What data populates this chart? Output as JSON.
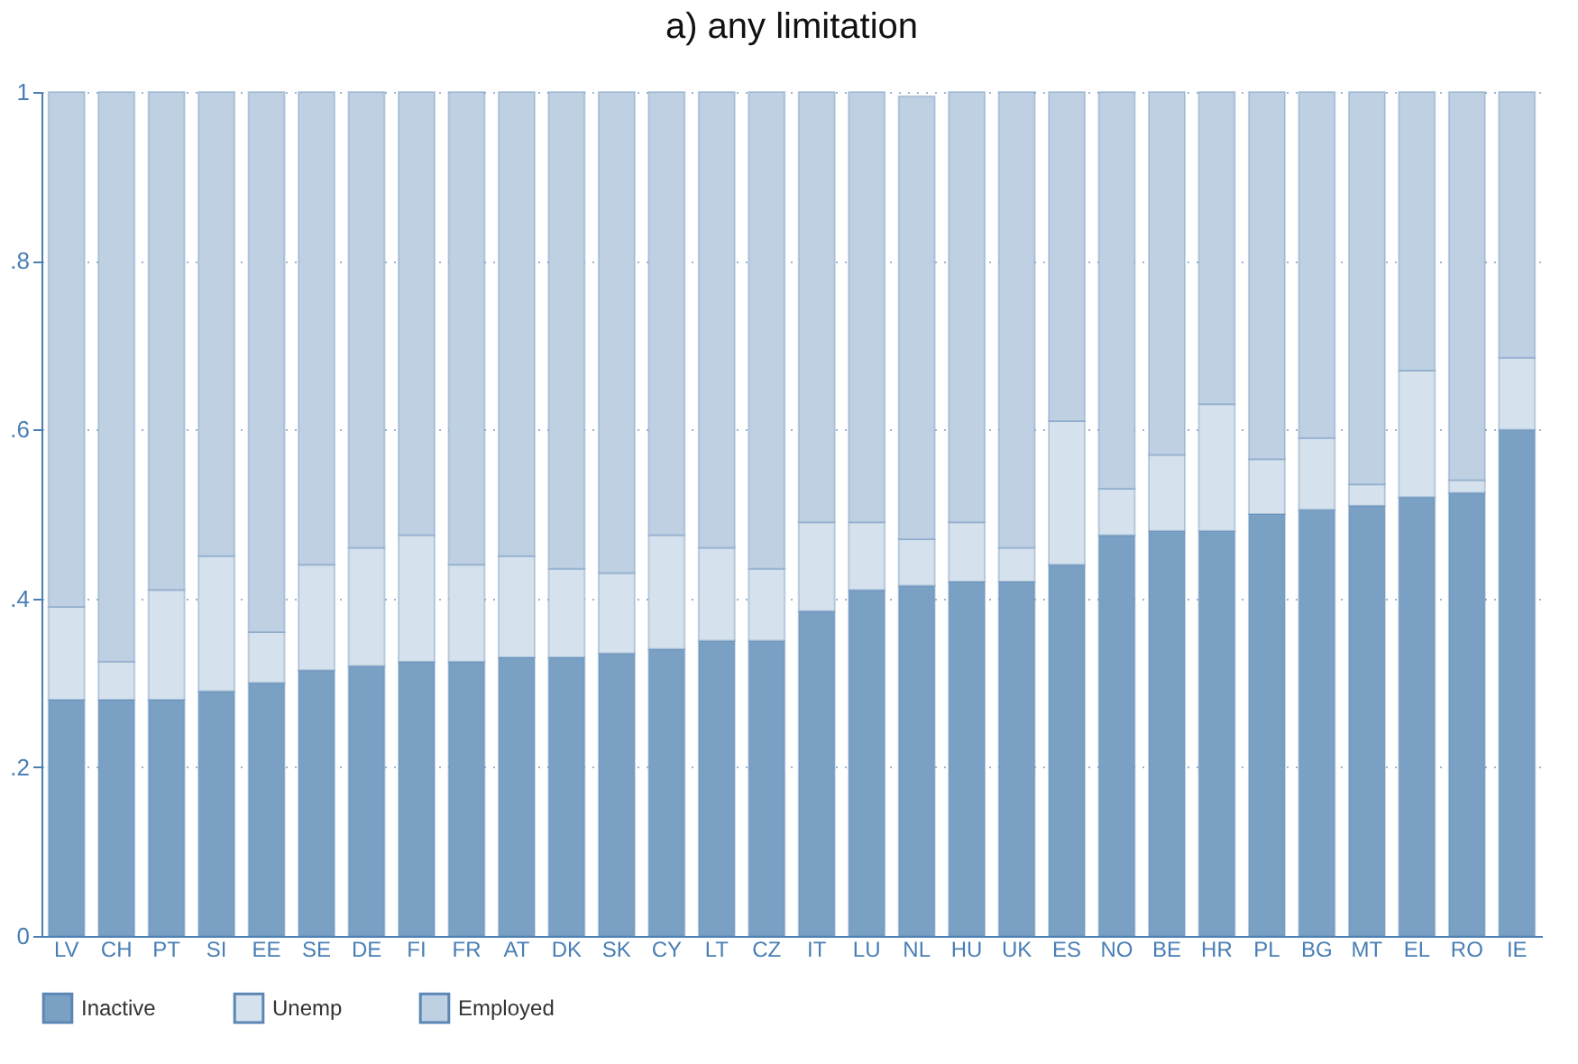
{
  "chart_data": {
    "type": "bar",
    "title": "a) any limitation",
    "stacked": true,
    "categories": [
      "LV",
      "CH",
      "PT",
      "SI",
      "EE",
      "SE",
      "DE",
      "FI",
      "FR",
      "AT",
      "DK",
      "SK",
      "CY",
      "LT",
      "CZ",
      "IT",
      "LU",
      "NL",
      "HU",
      "UK",
      "ES",
      "NO",
      "BE",
      "HR",
      "PL",
      "BG",
      "MT",
      "EL",
      "RO",
      "IE"
    ],
    "series": [
      {
        "name": "Inactive",
        "color": "#7aa0c4",
        "values": [
          0.28,
          0.28,
          0.28,
          0.29,
          0.3,
          0.315,
          0.32,
          0.325,
          0.325,
          0.33,
          0.33,
          0.335,
          0.34,
          0.35,
          0.35,
          0.385,
          0.41,
          0.415,
          0.42,
          0.42,
          0.44,
          0.475,
          0.48,
          0.48,
          0.5,
          0.505,
          0.51,
          0.52,
          0.525,
          0.6
        ]
      },
      {
        "name": "Unemp",
        "color": "#d5e1ec",
        "values": [
          0.11,
          0.045,
          0.13,
          0.16,
          0.06,
          0.125,
          0.14,
          0.15,
          0.115,
          0.12,
          0.105,
          0.095,
          0.135,
          0.11,
          0.085,
          0.105,
          0.08,
          0.055,
          0.07,
          0.04,
          0.17,
          0.055,
          0.09,
          0.15,
          0.065,
          0.085,
          0.025,
          0.15,
          0.015,
          0.085
        ]
      },
      {
        "name": "Employed",
        "color": "#bfd0e3",
        "values": [
          0.61,
          0.675,
          0.59,
          0.55,
          0.64,
          0.56,
          0.54,
          0.525,
          0.56,
          0.55,
          0.565,
          0.57,
          0.525,
          0.54,
          0.565,
          0.51,
          0.51,
          0.525,
          0.51,
          0.54,
          0.39,
          0.47,
          0.43,
          0.37,
          0.435,
          0.41,
          0.465,
          0.33,
          0.46,
          0.315
        ]
      }
    ],
    "ylim": [
      0,
      1
    ],
    "yticks": [
      0,
      {
        "value": 0.2,
        "label": ".2"
      },
      {
        "value": 0.4,
        "label": ".4"
      },
      {
        "value": 0.6,
        "label": ".6"
      },
      {
        "value": 0.8,
        "label": ".8"
      },
      1
    ],
    "grid": "y",
    "legend": "bottom"
  }
}
